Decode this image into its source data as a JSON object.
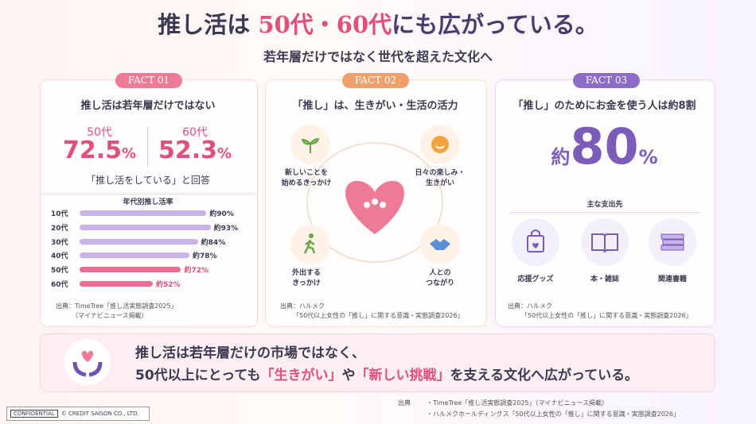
{
  "header": {
    "title_parts": [
      "推し活は",
      "50代・60代",
      "にも広がっている。"
    ],
    "subtitle": "若年層だけではなく世代を超えた文化へ"
  },
  "fact1": {
    "badge": "FACT 01",
    "heading": "推し活は若年層だけではない",
    "stats": [
      {
        "label": "50代",
        "value": 72.5,
        "unit": "%"
      },
      {
        "label": "60代",
        "value": 52.3,
        "unit": "%"
      }
    ],
    "caption": "「推し活をしている」と回答",
    "chart": {
      "type": "bar",
      "title": "年代別推し活率",
      "categories": [
        "10代",
        "20代",
        "30代",
        "40代",
        "50代",
        "60代"
      ],
      "values": [
        90,
        93,
        84,
        78,
        72,
        52
      ],
      "value_labels": [
        "約90%",
        "約93%",
        "約84%",
        "約78%",
        "約72%",
        "約52%"
      ],
      "colors": [
        "#c7b3ea",
        "#c7b3ea",
        "#c7b3ea",
        "#c7b3ea",
        "#ec6d92",
        "#ec6d92"
      ],
      "xlim": [
        0,
        100
      ]
    },
    "source": [
      "出典：TimeTree「推し活実態調査2025」",
      "（マイナビニュース掲載）"
    ]
  },
  "fact2": {
    "badge": "FACT 02",
    "heading": "「推し」は、生きがい・生活の活力",
    "items": [
      "新しいことを\n始めるきっかけ",
      "日々の楽しみ・\n生きがい",
      "外出する\nきっかけ",
      "人との\nつながり"
    ],
    "source": [
      "出典：ハルメク",
      "「50代以上女性の「推し」に関する意識・実態調査2026」"
    ]
  },
  "fact3": {
    "badge": "FACT 03",
    "heading": "「推し」のためにお金を使う人は約8割",
    "big": {
      "prefix": "約",
      "value": 80,
      "unit": "%"
    },
    "sub": "主な支出先",
    "items": [
      "応援グッズ",
      "本・雑誌",
      "関連書籍"
    ],
    "source": [
      "出典：ハルメク",
      "「50代以上女性の「推し」に関する意識・実態調査2026」"
    ]
  },
  "banner": {
    "line1": "推し活は若年層だけの市場ではなく、",
    "line2": [
      "50代以上にとっても",
      "「生きがい」",
      "や",
      "「新しい挑戦」",
      "を支える文化へ広がっている。"
    ]
  },
  "footer": {
    "label": "出典",
    "sources": [
      "・TimeTree「推し活実態調査2025」（マイナビニュース掲載）",
      "・ハルメクホールディングス「50代以上女性の「推し」に関する意識・実態調査2026」"
    ],
    "confidential": "CONFIDENTIAL",
    "copyright": "© CREDIT SAISON CO., LTD."
  }
}
